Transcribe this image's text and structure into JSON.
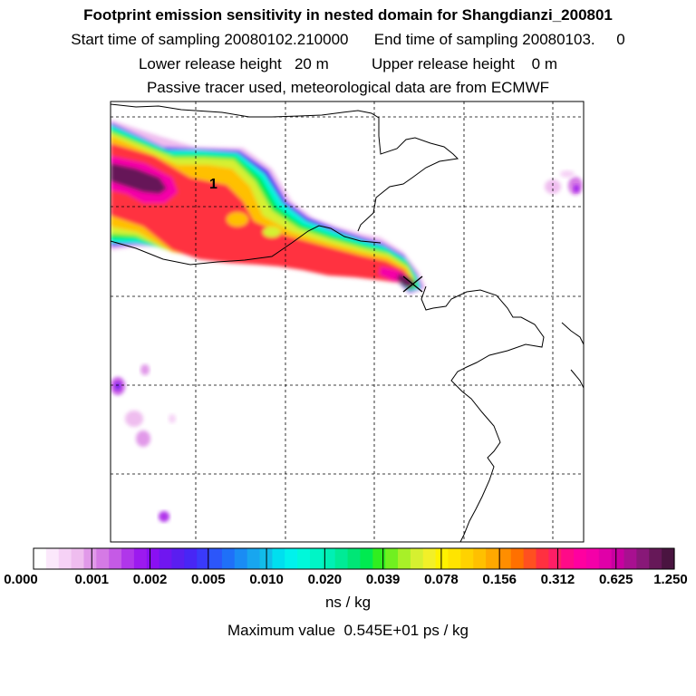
{
  "title": "Footprint emission sensitivity in nested domain for Shangdianzi_200801",
  "sampling_line": "Start time of sampling 20080102.210000      End time of sampling 20080103.     0",
  "release_line": "Lower release height   20 m          Upper release height    0 m",
  "tracer_line": "Passive tracer used, meteorological data are from ECMWF",
  "chart_data": {
    "type": "heatmap",
    "title": "Footprint emission sensitivity in nested domain for Shangdianzi_200801",
    "colorbar": {
      "ticks": [
        "0.000",
        "0.001",
        "0.002",
        "0.005",
        "0.010",
        "0.020",
        "0.039",
        "0.078",
        "0.156",
        "0.312",
        "0.625",
        "1.250"
      ],
      "colors": [
        "#ffffff",
        "#fbe8fb",
        "#f6d2f6",
        "#efbdef",
        "#e199e9",
        "#d57ae5",
        "#c55ae6",
        "#b036ea",
        "#9c1aef",
        "#8a10f2",
        "#7016f0",
        "#5a1ef0",
        "#4826f5",
        "#3a3afa",
        "#2c56fa",
        "#1f70f8",
        "#1a8cf4",
        "#18a6ef",
        "#12bce9",
        "#00dfef",
        "#00f2ec",
        "#00f8da",
        "#00f5c6",
        "#00f0b4",
        "#00eb96",
        "#00e676",
        "#00ea50",
        "#30ee20",
        "#70f020",
        "#a8f028",
        "#d6f030",
        "#f2f028",
        "#fff200",
        "#ffe400",
        "#ffd200",
        "#ffc000",
        "#ffa800",
        "#ff8e00",
        "#ff7000",
        "#ff5020",
        "#ff3040",
        "#ff1e66",
        "#ff0a88",
        "#ff00a0",
        "#f400a8",
        "#e000a8",
        "#c800a0",
        "#a81090",
        "#881878",
        "#661858",
        "#4a1440"
      ]
    },
    "colorbar_units": "ns / kg",
    "max_value_label": "Maximum value  0.545E+01 ps / kg",
    "annotation": "1",
    "receptor_marker": "x",
    "plume_core_levels": [
      "1.250",
      "0.625",
      "0.312",
      "0.156",
      "0.078",
      "0.039",
      "0.020",
      "0.010",
      "0.005",
      "0.002",
      "0.001"
    ],
    "grid": true
  }
}
